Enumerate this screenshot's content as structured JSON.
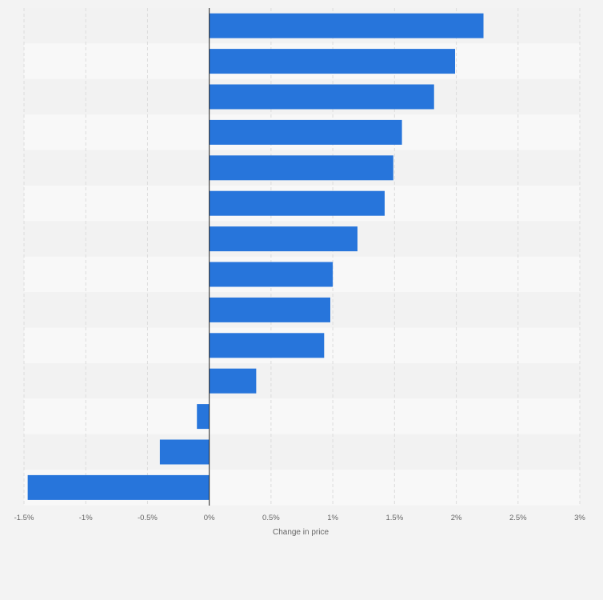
{
  "chart_data": {
    "type": "bar",
    "orientation": "horizontal",
    "title": "",
    "xlabel": "Change in price",
    "ylabel": "",
    "xlim": [
      -1.5,
      3
    ],
    "x_ticks": [
      -1.5,
      -1,
      -0.5,
      0,
      0.5,
      1,
      1.5,
      2,
      2.5,
      3
    ],
    "x_tick_labels": [
      "-1.5%",
      "-1%",
      "-0.5%",
      "0%",
      "0.5%",
      "1%",
      "1.5%",
      "2%",
      "2.5%",
      "3%"
    ],
    "values": [
      2.22,
      1.99,
      1.82,
      1.56,
      1.49,
      1.42,
      1.2,
      1.0,
      0.98,
      0.93,
      0.38,
      -0.1,
      -0.4,
      -1.47
    ],
    "grid": true,
    "legend": "none"
  },
  "colors": {
    "bar": "#2775db",
    "background": "#f3f3f3",
    "band_dark": "#f2f2f2",
    "band_light": "#f8f8f8",
    "grid": "#dcdcdc",
    "axis": "#222222",
    "tick_text": "#666666"
  }
}
